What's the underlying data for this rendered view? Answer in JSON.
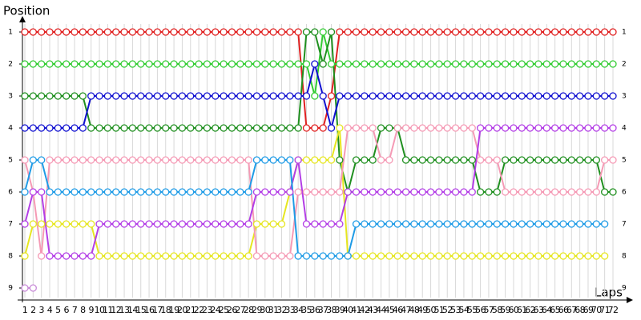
{
  "chart_data": {
    "type": "line",
    "title": "Position",
    "x_label": "Laps",
    "categories": [
      "1",
      "2",
      "3",
      "4",
      "5",
      "6",
      "7",
      "8",
      "9",
      "10",
      "11",
      "12",
      "13",
      "14",
      "15",
      "16",
      "17",
      "18",
      "19",
      "20",
      "21",
      "22",
      "23",
      "24",
      "25",
      "26",
      "27",
      "28",
      "29",
      "30",
      "31",
      "32",
      "33",
      "34",
      "35",
      "36",
      "37",
      "38",
      "39",
      "40",
      "41",
      "42",
      "43",
      "44",
      "45",
      "46",
      "47",
      "48",
      "49",
      "50",
      "51",
      "52",
      "53",
      "54",
      "55",
      "56",
      "57",
      "58",
      "59",
      "60",
      "61",
      "62",
      "63",
      "64",
      "65",
      "66",
      "67",
      "68",
      "69",
      "70",
      "71",
      "72"
    ],
    "ylim": [
      9,
      1
    ],
    "yticks": [
      1,
      2,
      3,
      4,
      5,
      6,
      7,
      8,
      9
    ],
    "grid": true,
    "series": [
      {
        "color": "#e02020",
        "values": [
          1,
          1,
          1,
          1,
          1,
          1,
          1,
          1,
          1,
          1,
          1,
          1,
          1,
          1,
          1,
          1,
          1,
          1,
          1,
          1,
          1,
          1,
          1,
          1,
          1,
          1,
          1,
          1,
          1,
          1,
          1,
          1,
          1,
          1,
          4,
          4,
          4,
          3,
          1,
          1,
          1,
          1,
          1,
          1,
          1,
          1,
          1,
          1,
          1,
          1,
          1,
          1,
          1,
          1,
          1,
          1,
          1,
          1,
          1,
          1,
          1,
          1,
          1,
          1,
          1,
          1,
          1,
          1,
          1,
          1,
          1,
          1
        ]
      },
      {
        "color": "#33cc33",
        "values": [
          2,
          2,
          2,
          2,
          2,
          2,
          2,
          2,
          2,
          2,
          2,
          2,
          2,
          2,
          2,
          2,
          2,
          2,
          2,
          2,
          2,
          2,
          2,
          2,
          2,
          2,
          2,
          2,
          2,
          2,
          2,
          2,
          2,
          2,
          2,
          3,
          1,
          2,
          2,
          2,
          2,
          2,
          2,
          2,
          2,
          2,
          2,
          2,
          2,
          2,
          2,
          2,
          2,
          2,
          2,
          2,
          2,
          2,
          2,
          2,
          2,
          2,
          2,
          2,
          2,
          2,
          2,
          2,
          2,
          2,
          2,
          2
        ]
      },
      {
        "color": "#1f8f1f",
        "values": [
          3,
          3,
          3,
          3,
          3,
          3,
          3,
          3,
          4,
          4,
          4,
          4,
          4,
          4,
          4,
          4,
          4,
          4,
          4,
          4,
          4,
          4,
          4,
          4,
          4,
          4,
          4,
          4,
          4,
          4,
          4,
          4,
          4,
          4,
          1,
          1,
          2,
          1,
          5,
          6,
          5,
          5,
          5,
          4,
          4,
          4,
          5,
          5,
          5,
          5,
          5,
          5,
          5,
          5,
          5,
          6,
          6,
          6,
          5,
          5,
          5,
          5,
          5,
          5,
          5,
          5,
          5,
          5,
          5,
          5,
          6,
          6
        ]
      },
      {
        "color": "#1010d0",
        "values": [
          4,
          4,
          4,
          4,
          4,
          4,
          4,
          4,
          3,
          3,
          3,
          3,
          3,
          3,
          3,
          3,
          3,
          3,
          3,
          3,
          3,
          3,
          3,
          3,
          3,
          3,
          3,
          3,
          3,
          3,
          3,
          3,
          3,
          3,
          3,
          2,
          3,
          4,
          3,
          3,
          3,
          3,
          3,
          3,
          3,
          3,
          3,
          3,
          3,
          3,
          3,
          3,
          3,
          3,
          3,
          3,
          3,
          3,
          3,
          3,
          3,
          3,
          3,
          3,
          3,
          3,
          3,
          3,
          3,
          3,
          3,
          3
        ]
      },
      {
        "color": "#e6e620",
        "values": [
          8,
          7,
          7,
          7,
          7,
          7,
          7,
          7,
          7,
          8,
          8,
          8,
          8,
          8,
          8,
          8,
          8,
          8,
          8,
          8,
          8,
          8,
          8,
          8,
          8,
          8,
          8,
          8,
          7,
          7,
          7,
          7,
          6,
          5,
          5,
          5,
          5,
          5,
          4,
          8,
          8,
          8,
          8,
          8,
          8,
          8,
          8,
          8,
          8,
          8,
          8,
          8,
          8,
          8,
          8,
          8,
          8,
          8,
          8,
          8,
          8,
          8,
          8,
          8,
          8,
          8,
          8,
          8,
          8,
          8,
          8,
          null
        ]
      },
      {
        "color": "#f59ab5",
        "values": [
          5,
          6,
          8,
          5,
          5,
          5,
          5,
          5,
          5,
          5,
          5,
          5,
          5,
          5,
          5,
          5,
          5,
          5,
          5,
          5,
          5,
          5,
          5,
          5,
          5,
          5,
          5,
          5,
          8,
          8,
          8,
          8,
          8,
          6,
          6,
          6,
          6,
          6,
          6,
          4,
          4,
          4,
          4,
          5,
          5,
          4,
          4,
          4,
          4,
          4,
          4,
          4,
          4,
          4,
          4,
          5,
          5,
          5,
          6,
          6,
          6,
          6,
          6,
          6,
          6,
          6,
          6,
          6,
          6,
          6,
          5,
          5
        ]
      },
      {
        "color": "#b33ee6",
        "values": [
          7,
          6,
          6,
          8,
          8,
          8,
          8,
          8,
          8,
          7,
          7,
          7,
          7,
          7,
          7,
          7,
          7,
          7,
          7,
          7,
          7,
          7,
          7,
          7,
          7,
          7,
          7,
          7,
          6,
          6,
          6,
          6,
          6,
          5,
          7,
          7,
          7,
          7,
          7,
          6,
          6,
          6,
          6,
          6,
          6,
          6,
          6,
          6,
          6,
          6,
          6,
          6,
          6,
          6,
          6,
          4,
          4,
          4,
          4,
          4,
          4,
          4,
          4,
          4,
          4,
          4,
          4,
          4,
          4,
          4,
          4,
          4
        ]
      },
      {
        "color": "#1e9be6",
        "values": [
          6,
          5,
          5,
          6,
          6,
          6,
          6,
          6,
          6,
          6,
          6,
          6,
          6,
          6,
          6,
          6,
          6,
          6,
          6,
          6,
          6,
          6,
          6,
          6,
          6,
          6,
          6,
          6,
          5,
          5,
          5,
          5,
          5,
          8,
          8,
          8,
          8,
          8,
          8,
          8,
          7,
          7,
          7,
          7,
          7,
          7,
          7,
          7,
          7,
          7,
          7,
          7,
          7,
          7,
          7,
          7,
          7,
          7,
          7,
          7,
          7,
          7,
          7,
          7,
          7,
          7,
          7,
          7,
          7,
          7,
          7,
          null
        ]
      },
      {
        "color": "#c88ad8",
        "values": [
          9,
          9,
          null,
          null,
          null,
          null,
          null,
          null,
          null,
          null,
          null,
          null,
          null,
          null,
          null,
          null,
          null,
          null,
          null,
          null,
          null,
          null,
          null,
          null,
          null,
          null,
          null,
          null,
          null,
          null,
          null,
          null,
          null,
          null,
          null,
          null,
          null,
          null,
          null,
          null,
          null,
          null,
          null,
          null,
          null,
          null,
          null,
          null,
          null,
          null,
          null,
          null,
          null,
          null,
          null,
          null,
          null,
          null,
          null,
          null,
          null,
          null,
          null,
          null,
          null,
          null,
          null,
          null,
          null,
          null,
          null,
          null
        ]
      }
    ]
  }
}
